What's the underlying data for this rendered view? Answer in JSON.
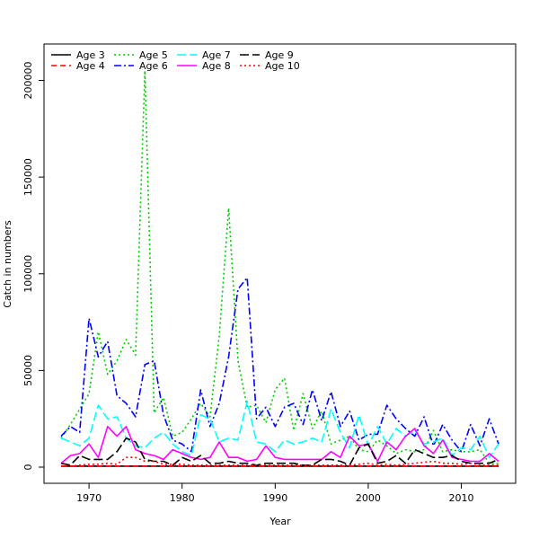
{
  "chart_data": {
    "type": "line",
    "title": "",
    "xlabel": "Year",
    "ylabel": "Catch in numbers",
    "xlim": [
      1967,
      2014
    ],
    "ylim": [
      0,
      210000
    ],
    "x_ticks": [
      1970,
      1980,
      1990,
      2000,
      2010
    ],
    "y_ticks": [
      0,
      50000,
      100000,
      150000,
      200000
    ],
    "x_tick_labels": [
      "1970",
      "1980",
      "1990",
      "2000",
      "2010"
    ],
    "y_tick_labels": [
      "0",
      "50000",
      "100000",
      "150000",
      "200000"
    ],
    "legend_placement": "top-left",
    "legend_columns": 4,
    "x": [
      1967,
      1968,
      1969,
      1970,
      1971,
      1972,
      1973,
      1974,
      1975,
      1976,
      1977,
      1978,
      1979,
      1980,
      1981,
      1982,
      1983,
      1984,
      1985,
      1986,
      1987,
      1988,
      1989,
      1990,
      1991,
      1992,
      1993,
      1994,
      1995,
      1996,
      1997,
      1998,
      1999,
      2000,
      2001,
      2002,
      2003,
      2004,
      2005,
      2006,
      2007,
      2008,
      2009,
      2010,
      2011,
      2012,
      2013,
      2014
    ],
    "series": [
      {
        "name": "Age 3",
        "color": "#000000",
        "dash": "solid",
        "values": [
          500,
          500,
          500,
          500,
          500,
          500,
          500,
          500,
          500,
          500,
          500,
          500,
          500,
          500,
          500,
          500,
          500,
          500,
          500,
          500,
          500,
          500,
          500,
          500,
          500,
          500,
          500,
          500,
          500,
          500,
          500,
          500,
          500,
          500,
          500,
          500,
          500,
          500,
          500,
          500,
          500,
          500,
          500,
          500,
          500,
          500,
          500,
          500
        ]
      },
      {
        "name": "Age 4",
        "color": "#ff0000",
        "dash": "dashed",
        "values": [
          500,
          500,
          500,
          500,
          500,
          500,
          500,
          500,
          500,
          500,
          500,
          500,
          500,
          500,
          500,
          500,
          500,
          500,
          500,
          500,
          500,
          500,
          500,
          500,
          500,
          500,
          500,
          500,
          500,
          500,
          500,
          500,
          500,
          500,
          500,
          500,
          500,
          500,
          500,
          500,
          500,
          500,
          500,
          500,
          500,
          500,
          500,
          500
        ]
      },
      {
        "name": "Age 5",
        "color": "#00cd00",
        "dash": "dotted",
        "values": [
          15000,
          22000,
          30000,
          38000,
          70000,
          48000,
          55000,
          66000,
          58000,
          205000,
          28000,
          36000,
          16000,
          18000,
          25000,
          33000,
          26000,
          68000,
          134000,
          55000,
          31000,
          32000,
          23000,
          40000,
          46000,
          19000,
          38000,
          20000,
          29000,
          12000,
          14000,
          16000,
          9000,
          8000,
          14000,
          11000,
          7000,
          9000,
          8000,
          9000,
          19000,
          8000,
          9000,
          8000,
          8000,
          9000,
          2000,
          2000
        ]
      },
      {
        "name": "Age 6",
        "color": "#0000ff",
        "dash": "dashdot",
        "values": [
          16000,
          21000,
          18000,
          77000,
          57000,
          65000,
          37000,
          33000,
          26000,
          53000,
          55000,
          27000,
          14000,
          12000,
          8000,
          40000,
          21000,
          33000,
          57000,
          92000,
          98000,
          25000,
          31000,
          21000,
          31000,
          33000,
          22000,
          40000,
          24000,
          39000,
          21000,
          29000,
          14000,
          17000,
          17000,
          32000,
          25000,
          20000,
          16000,
          26000,
          11000,
          22000,
          14000,
          8000,
          22000,
          11000,
          25000,
          12000
        ]
      },
      {
        "name": "Age 7",
        "color": "#00ffff",
        "dash": "longdash",
        "values": [
          15000,
          13000,
          11000,
          15000,
          32000,
          25000,
          26000,
          15000,
          11000,
          10000,
          15000,
          18000,
          12000,
          8000,
          6000,
          27000,
          25000,
          13000,
          15000,
          14000,
          34000,
          13000,
          12000,
          8000,
          14000,
          12000,
          13000,
          15000,
          13000,
          30000,
          18000,
          10000,
          27000,
          11000,
          21000,
          12000,
          20000,
          16000,
          19000,
          12000,
          13000,
          15000,
          6000,
          10000,
          9000,
          16000,
          5000,
          12000
        ]
      },
      {
        "name": "Age 8",
        "color": "#ff00ff",
        "dash": "solid",
        "values": [
          2000,
          6000,
          7000,
          12000,
          5000,
          21000,
          16000,
          21000,
          9000,
          7000,
          6000,
          4000,
          9000,
          7000,
          5000,
          4000,
          5000,
          13000,
          5000,
          5000,
          3000,
          4000,
          11000,
          5000,
          4000,
          4000,
          4000,
          4000,
          4000,
          8000,
          5000,
          16000,
          11000,
          12000,
          3000,
          13000,
          9000,
          16000,
          20000,
          11000,
          7000,
          14000,
          5000,
          4000,
          3000,
          3000,
          7000,
          3000
        ]
      },
      {
        "name": "Age 9",
        "color": "#000000",
        "dash": "longdash",
        "values": [
          2000,
          1000,
          6000,
          4000,
          4000,
          4000,
          8000,
          15000,
          13000,
          4000,
          3000,
          3000,
          1000,
          5000,
          3000,
          6000,
          2000,
          2000,
          3000,
          2000,
          2000,
          1000,
          2000,
          2000,
          2000,
          2000,
          1000,
          1000,
          4000,
          4000,
          3000,
          1000,
          10000,
          12000,
          2000,
          3000,
          6000,
          2000,
          9000,
          7000,
          5000,
          5000,
          6000,
          3000,
          2000,
          2000,
          2000,
          4000
        ]
      },
      {
        "name": "Age 10",
        "color": "#ff0000",
        "dash": "dotted",
        "values": [
          500,
          500,
          1000,
          1500,
          1500,
          2000,
          1500,
          5000,
          5000,
          3000,
          3000,
          1500,
          1500,
          1500,
          1000,
          1000,
          1000,
          1000,
          1000,
          1000,
          1000,
          1000,
          1000,
          1000,
          1000,
          1000,
          1000,
          1000,
          1000,
          1000,
          1000,
          1000,
          1500,
          2000,
          1000,
          1500,
          1000,
          1500,
          2000,
          2500,
          3000,
          2000,
          2000,
          1500,
          2000,
          1000,
          1000,
          1000
        ]
      }
    ]
  }
}
